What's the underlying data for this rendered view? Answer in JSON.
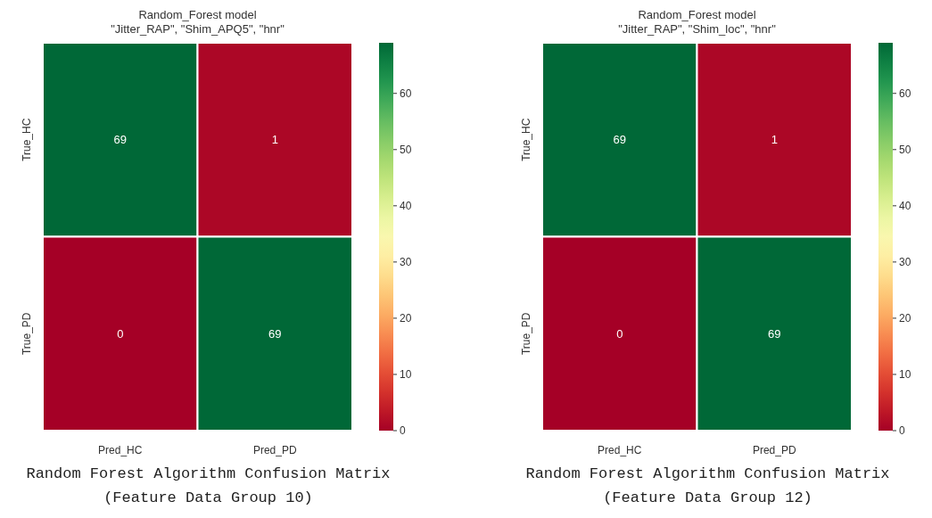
{
  "chart_data": [
    {
      "type": "heatmap",
      "title": "Random_Forest model",
      "subtitle": "\"Jitter_RAP\",  \"Shim_APQ5\", \"hnr\"",
      "categories": [
        "Pred_HC",
        "Pred_PD"
      ],
      "y_categories": [
        "True_HC",
        "True_PD"
      ],
      "cells": [
        [
          69,
          1
        ],
        [
          0,
          69
        ]
      ],
      "data_labels": true,
      "clim": [
        0,
        69
      ],
      "cticks": [
        0,
        10,
        20,
        30,
        40,
        50,
        60
      ],
      "annotations": [
        "Random Forest Algorithm Confusion Matrix",
        "(Feature Data Group 10)"
      ]
    },
    {
      "type": "heatmap",
      "title": "Random_Forest model",
      "subtitle": "\"Jitter_RAP\",  \"Shim_loc\", \"hnr\"",
      "categories": [
        "Pred_HC",
        "Pred_PD"
      ],
      "y_categories": [
        "True_HC",
        "True_PD"
      ],
      "cells": [
        [
          69,
          1
        ],
        [
          0,
          69
        ]
      ],
      "data_labels": true,
      "clim": [
        0,
        69
      ],
      "cticks": [
        0,
        10,
        20,
        30,
        40,
        50,
        60
      ],
      "annotations": [
        "Random Forest Algorithm Confusion Matrix",
        "(Feature Data Group 12)"
      ]
    }
  ]
}
